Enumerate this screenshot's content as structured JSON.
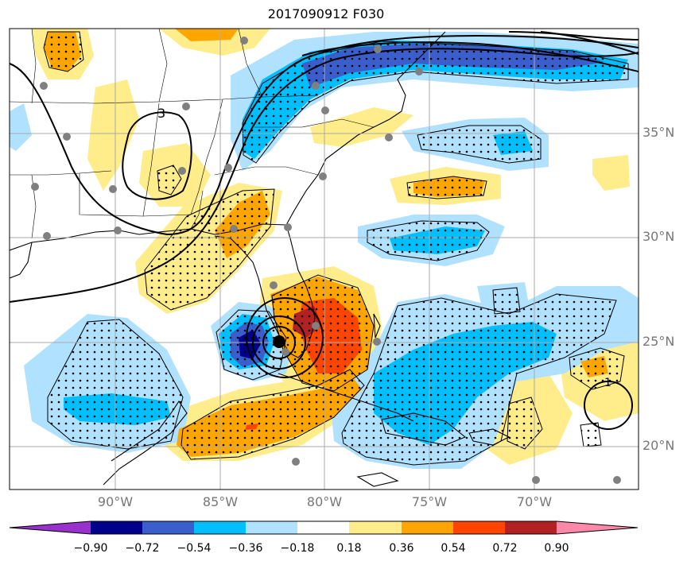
{
  "title": "2017090912 F030",
  "map": {
    "lat_labels": [
      "35°N",
      "30°N",
      "25°N",
      "20°N"
    ],
    "lon_labels": [
      "90°W",
      "85°W",
      "80°W",
      "75°W",
      "70°W"
    ],
    "contour_labels": [
      "3",
      "1"
    ],
    "extent": {
      "lon_min": -95,
      "lon_max": -65,
      "lat_min": 18,
      "lat_max": 40
    }
  },
  "colorbar": {
    "labels": [
      "−0.90",
      "−0.72",
      "−0.54",
      "−0.36",
      "−0.18",
      "0.18",
      "0.36",
      "0.54",
      "0.72",
      "0.90"
    ],
    "colors": [
      "#9932cc",
      "#00008b",
      "#3a5fcd",
      "#00bfff",
      "#b0e2ff",
      "#ffffff",
      "#ffec8b",
      "#ffa500",
      "#ff4500",
      "#b22222",
      "#ff88aa"
    ]
  },
  "colors": {
    "grid": "#aaaaaa",
    "label_gray": "#777777",
    "station": "#808080"
  }
}
